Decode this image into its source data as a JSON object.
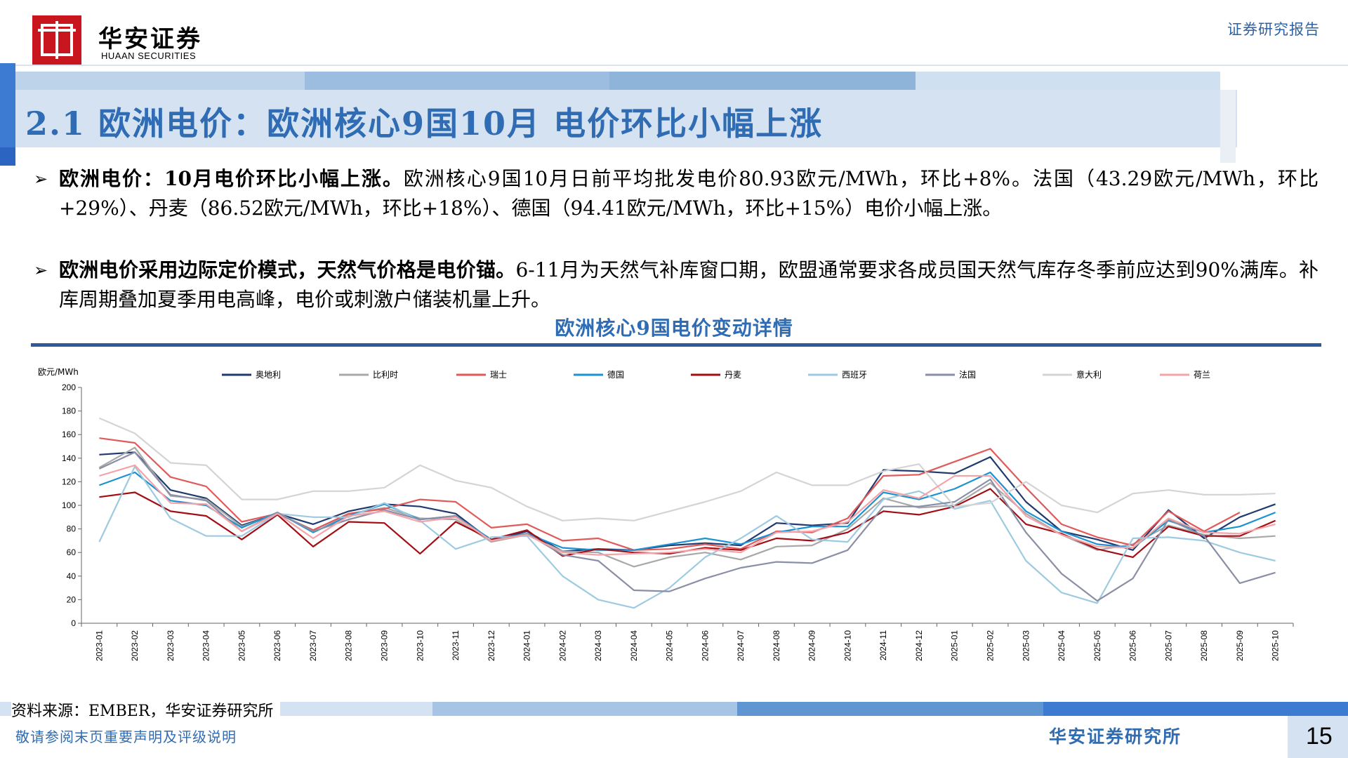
{
  "header": {
    "brand_cn": "华安证券",
    "brand_en": "HUAAN SECURITIES",
    "report_type": "证券研究报告"
  },
  "page_title": "2.1 欧洲电价：欧洲核心9国10月 电价环比小幅上涨",
  "bullets": [
    {
      "bold": "欧洲电价：10月电价环比小幅上涨。",
      "text": "欧洲核心9国10月日前平均批发电价80.93欧元/MWh，环比+8%。法国（43.29欧元/MWh，环比+29%）、丹麦（86.52欧元/MWh，环比+18%）、德国（94.41欧元/MWh，环比+15%）电价小幅上涨。"
    },
    {
      "bold": "欧洲电价采用边际定价模式，天然气价格是电价锚。",
      "text": "6-11月为天然气补库窗口期，欧盟通常要求各成员国天然气库存冬季前应达到90%满库。补库周期叠加夏季用电高峰，电价或刺激户储装机量上升。"
    }
  ],
  "figure_title": "欧洲核心9国电价变动详情",
  "footer": {
    "source": "资料来源：EMBER，华安证券研究所",
    "disclaimer": "敬请参阅末页重要声明及评级说明",
    "institute": "华安证券研究所",
    "page_number": "15"
  },
  "colors": {
    "accent": "#2f6cb3",
    "brand_red": "#c8151e"
  },
  "chart_data": {
    "type": "line",
    "ylabel": "欧元/MWh",
    "ylim": [
      0,
      200
    ],
    "yticks": [
      0,
      20,
      40,
      60,
      80,
      100,
      120,
      140,
      160,
      180,
      200
    ],
    "legend_position": "top",
    "categories": [
      "2023-01",
      "2023-02",
      "2023-03",
      "2023-04",
      "2023-05",
      "2023-06",
      "2023-07",
      "2023-08",
      "2023-09",
      "2023-10",
      "2023-11",
      "2023-12",
      "2024-01",
      "2024-02",
      "2024-03",
      "2024-04",
      "2024-05",
      "2024-06",
      "2024-07",
      "2024-08",
      "2024-09",
      "2024-10",
      "2024-11",
      "2024-12",
      "2025-01",
      "2025-02",
      "2025-03",
      "2025-04",
      "2025-05",
      "2025-06",
      "2025-07",
      "2025-08",
      "2025-09",
      "2025-10"
    ],
    "series": [
      {
        "name": "奥地利",
        "color": "#1f3a6e",
        "values": [
          143,
          145,
          113,
          106,
          83,
          93,
          84,
          95,
          101,
          99,
          93,
          70,
          78,
          61,
          63,
          62,
          66,
          68,
          66,
          85,
          83,
          85,
          130,
          129,
          127,
          141,
          103,
          78,
          71,
          62,
          96,
          72,
          90,
          101
        ]
      },
      {
        "name": "比利时",
        "color": "#a8a8a8",
        "values": [
          132,
          149,
          108,
          105,
          82,
          93,
          79,
          92,
          98,
          89,
          88,
          69,
          75,
          61,
          60,
          48,
          56,
          60,
          54,
          65,
          66,
          80,
          106,
          98,
          100,
          119,
          93,
          75,
          62,
          67,
          83,
          75,
          72,
          74
        ]
      },
      {
        "name": "瑞士",
        "color": "#e05a5a",
        "values": [
          157,
          153,
          124,
          116,
          86,
          93,
          79,
          93,
          97,
          105,
          103,
          81,
          84,
          70,
          72,
          62,
          63,
          67,
          63,
          78,
          77,
          89,
          125,
          126,
          137,
          148,
          115,
          84,
          73,
          66,
          95,
          78,
          94,
          null
        ]
      },
      {
        "name": "德国",
        "color": "#1b92d1",
        "values": [
          117,
          128,
          104,
          100,
          81,
          94,
          77,
          91,
          101,
          88,
          91,
          71,
          76,
          64,
          62,
          62,
          67,
          72,
          67,
          77,
          82,
          82,
          111,
          105,
          114,
          128,
          95,
          78,
          67,
          64,
          87,
          77,
          82,
          94
        ]
      },
      {
        "name": "丹麦",
        "color": "#a30e14",
        "values": [
          107,
          111,
          95,
          91,
          71,
          92,
          65,
          86,
          85,
          59,
          86,
          71,
          79,
          57,
          63,
          60,
          59,
          64,
          62,
          72,
          70,
          77,
          95,
          92,
          99,
          114,
          84,
          76,
          63,
          56,
          82,
          74,
          74,
          87
        ]
      },
      {
        "name": "西班牙",
        "color": "#9ecae1",
        "values": [
          69,
          133,
          89,
          74,
          74,
          93,
          90,
          90,
          102,
          87,
          63,
          73,
          74,
          40,
          20,
          13,
          30,
          56,
          72,
          91,
          71,
          69,
          105,
          112,
          97,
          104,
          53,
          26,
          17,
          72,
          73,
          70,
          60,
          53
        ]
      },
      {
        "name": "法国",
        "color": "#8a8fa6",
        "values": [
          131,
          145,
          109,
          104,
          78,
          94,
          78,
          88,
          96,
          88,
          91,
          70,
          76,
          58,
          53,
          28,
          27,
          38,
          47,
          52,
          51,
          62,
          99,
          99,
          103,
          122,
          77,
          42,
          19,
          38,
          88,
          74,
          34,
          43
        ]
      },
      {
        "name": "意大利",
        "color": "#d4d4d4",
        "values": [
          174,
          161,
          136,
          134,
          105,
          105,
          112,
          112,
          115,
          134,
          121,
          115,
          99,
          87,
          89,
          87,
          95,
          103,
          112,
          128,
          117,
          117,
          129,
          135,
          99,
          102,
          120,
          100,
          94,
          110,
          113,
          109,
          109,
          110
        ]
      },
      {
        "name": "荷兰",
        "color": "#f4a3a8",
        "values": [
          125,
          134,
          102,
          101,
          78,
          93,
          72,
          91,
          95,
          86,
          90,
          70,
          75,
          60,
          58,
          59,
          60,
          63,
          60,
          77,
          78,
          86,
          113,
          106,
          125,
          125,
          91,
          75,
          65,
          64,
          89,
          77,
          76,
          84
        ]
      }
    ]
  }
}
